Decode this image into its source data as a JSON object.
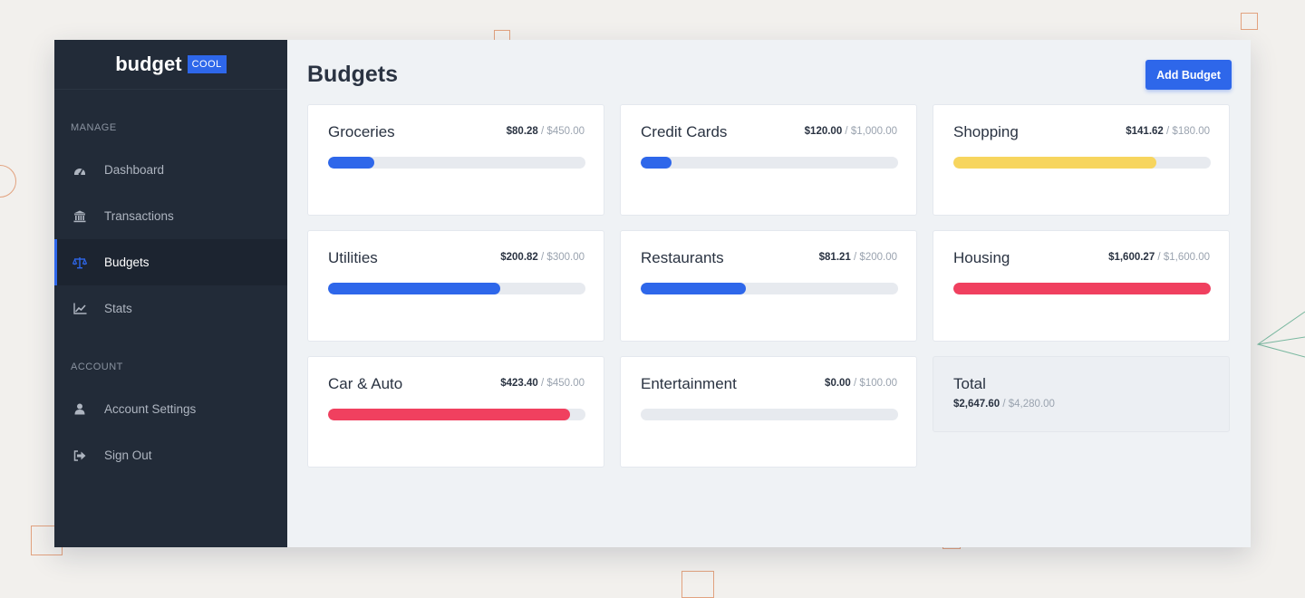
{
  "brand": {
    "name": "budget",
    "badge": "COOL"
  },
  "sidebar": {
    "sections": [
      {
        "label": "MANAGE",
        "items": [
          {
            "label": "Dashboard",
            "icon": "dashboard-icon",
            "active": false
          },
          {
            "label": "Transactions",
            "icon": "bank-icon",
            "active": false
          },
          {
            "label": "Budgets",
            "icon": "scale-icon",
            "active": true
          },
          {
            "label": "Stats",
            "icon": "chart-line-icon",
            "active": false
          }
        ]
      },
      {
        "label": "ACCOUNT",
        "items": [
          {
            "label": "Account Settings",
            "icon": "user-icon",
            "active": false
          },
          {
            "label": "Sign Out",
            "icon": "sign-out-icon",
            "active": false
          }
        ]
      }
    ]
  },
  "header": {
    "title": "Budgets",
    "add_button": "Add Budget"
  },
  "budgets": [
    {
      "name": "Groceries",
      "spent": "$80.28",
      "limit": "$450.00",
      "progress": 0.18,
      "color": "#2e67ea"
    },
    {
      "name": "Credit Cards",
      "spent": "$120.00",
      "limit": "$1,000.00",
      "progress": 0.12,
      "color": "#2e67ea"
    },
    {
      "name": "Shopping",
      "spent": "$141.62",
      "limit": "$180.00",
      "progress": 0.79,
      "color": "#f7d55e"
    },
    {
      "name": "Utilities",
      "spent": "$200.82",
      "limit": "$300.00",
      "progress": 0.67,
      "color": "#2e67ea"
    },
    {
      "name": "Restaurants",
      "spent": "$81.21",
      "limit": "$200.00",
      "progress": 0.41,
      "color": "#2e67ea"
    },
    {
      "name": "Housing",
      "spent": "$1,600.27",
      "limit": "$1,600.00",
      "progress": 1.0,
      "color": "#f0405f"
    },
    {
      "name": "Car & Auto",
      "spent": "$423.40",
      "limit": "$450.00",
      "progress": 0.94,
      "color": "#f0405f"
    },
    {
      "name": "Entertainment",
      "spent": "$0.00",
      "limit": "$100.00",
      "progress": 0.0,
      "color": "#2e67ea"
    }
  ],
  "total": {
    "title": "Total",
    "spent": "$2,647.60",
    "limit": "$4,280.00"
  }
}
